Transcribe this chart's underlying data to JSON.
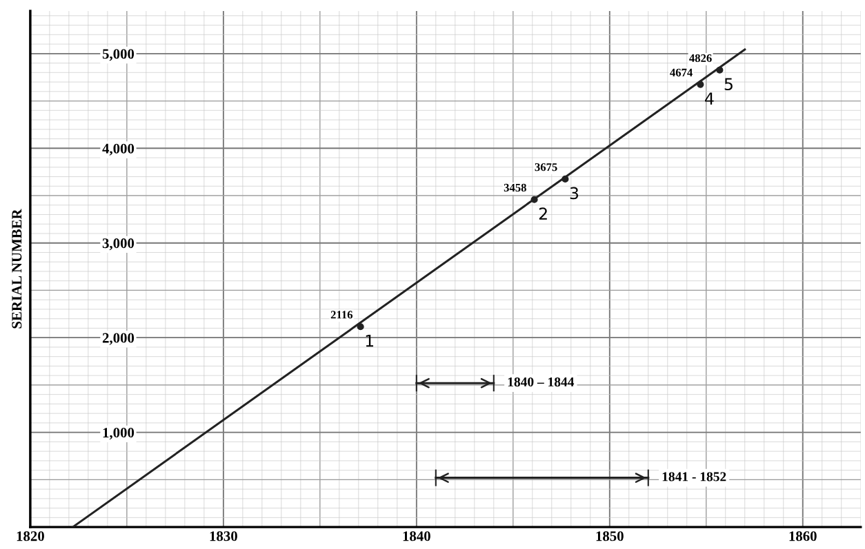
{
  "chart_data": {
    "type": "scatter",
    "ylabel": "SERIAL NUMBER",
    "xlim": [
      1820,
      1863
    ],
    "ylim": [
      0,
      5450
    ],
    "xticks": [
      1820,
      1830,
      1840,
      1850,
      1860
    ],
    "yticks": [
      {
        "value": 0,
        "label": null
      },
      {
        "value": 1000,
        "label": "1,000"
      },
      {
        "value": 2000,
        "label": "2,000"
      },
      {
        "value": 3000,
        "label": "3,000"
      },
      {
        "value": 4000,
        "label": "4,000"
      },
      {
        "value": 5000,
        "label": "5,000"
      }
    ],
    "grid": true,
    "series": [
      {
        "type": "line",
        "marker": "none",
        "color": "#222222",
        "x": [
          1822.2,
          1857.0
        ],
        "values": [
          0,
          5043
        ]
      },
      {
        "marker": "circle",
        "color": "#222222",
        "x": [
          1837.1,
          1846.1,
          1847.7,
          1854.7,
          1855.7
        ],
        "values": [
          2116,
          3458,
          3675,
          4674,
          4826
        ],
        "value_labels": [
          "2116",
          "3458",
          "3675",
          "4674",
          "4826"
        ]
      },
      {
        "type": "line",
        "marker": "none",
        "color": "#222222",
        "x": [
          1840,
          1844
        ],
        "values": [
          1520,
          1520
        ]
      },
      {
        "type": "line",
        "marker": "none",
        "color": "#222222",
        "x": [
          1841,
          1852
        ],
        "values": [
          520,
          520
        ]
      }
    ],
    "annotations": [
      {
        "text": "1",
        "x": 1837.1,
        "y": 2116
      },
      {
        "text": "2",
        "x": 1846.1,
        "y": 3458
      },
      {
        "text": "3",
        "x": 1847.7,
        "y": 3675
      },
      {
        "text": "4",
        "x": 1854.7,
        "y": 4674
      },
      {
        "text": "5",
        "x": 1855.7,
        "y": 4826
      },
      {
        "text": "1840 – 1844",
        "x": 1844,
        "y": 1520
      },
      {
        "text": "1841 - 1852",
        "x": 1852,
        "y": 520
      }
    ]
  }
}
